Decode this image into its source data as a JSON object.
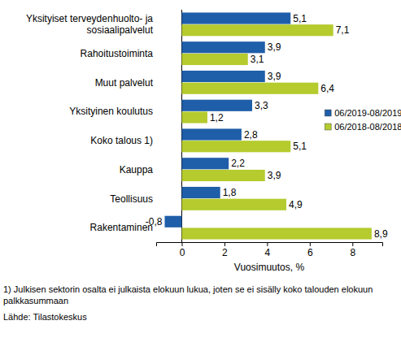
{
  "chart_data": {
    "type": "bar",
    "orientation": "horizontal",
    "categories": [
      "Yksityiset terveydenhuolto- ja sosiaalipalvelut",
      "Rahoitustoiminta",
      "Muut palvelut",
      "Yksityinen koulutus",
      "Koko talous 1)",
      "Kauppa",
      "Teollisuus",
      "Rakentaminen"
    ],
    "series": [
      {
        "name": "06/2019-08/2019",
        "color": "#1f5ea8",
        "values": [
          5.1,
          3.9,
          3.9,
          3.3,
          2.8,
          2.2,
          1.8,
          -0.8
        ],
        "value_labels": [
          "5,1",
          "3,9",
          "3,9",
          "3,3",
          "2,8",
          "2,2",
          "1,8",
          "-0,8"
        ]
      },
      {
        "name": "06/2018-08/2018",
        "color": "#b5cb2e",
        "values": [
          7.1,
          3.1,
          6.4,
          1.2,
          5.1,
          3.9,
          4.9,
          8.9
        ],
        "value_labels": [
          "7,1",
          "3,1",
          "6,4",
          "1,2",
          "5,1",
          "3,9",
          "4,9",
          "8,9"
        ]
      }
    ],
    "xlabel": "Vuosimuutos, %",
    "xlim": [
      -1.2,
      9.4
    ],
    "xticks": [
      0,
      2,
      4,
      6,
      8
    ],
    "data_labels": true,
    "grid": false,
    "legend": "right",
    "annotations": [
      "1) Julkisen sektorin osalta ei julkaista elokuun lukua, joten se ei sisälly koko talouden elokuun palkkasummaan",
      "Lähde: Tilastokeskus"
    ]
  }
}
